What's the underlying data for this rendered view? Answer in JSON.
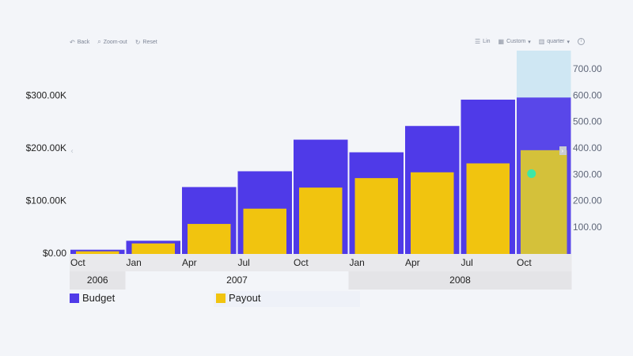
{
  "toolbar": {
    "back_label": "Back",
    "zoom_out_label": "Zoom-out",
    "reset_label": "Reset",
    "chart_type_label": "Lin",
    "custom_label": "Custom",
    "period_label": "quarter"
  },
  "chart_data": {
    "type": "bar",
    "x_ticks": [
      "Oct",
      "Jan",
      "Apr",
      "Jul",
      "Oct",
      "Jan",
      "Apr",
      "Jul",
      "Oct"
    ],
    "year_groups": [
      {
        "label": "2006",
        "span": 1
      },
      {
        "label": "2007",
        "span": 4
      },
      {
        "label": "2008",
        "span": 4
      }
    ],
    "series": [
      {
        "name": "Budget",
        "color": "#4f3ae8",
        "axis": "left",
        "values": [
          8000,
          25000,
          127000,
          157000,
          217000,
          193000,
          243000,
          293000,
          297000
        ]
      },
      {
        "name": "Payout",
        "color": "#f1c40f",
        "axis": "left",
        "values": [
          5000,
          20000,
          57000,
          86000,
          126000,
          144000,
          155000,
          172000,
          197000
        ]
      }
    ],
    "y_left": {
      "min": 0,
      "max": 350000,
      "ticks": [
        "$0.00",
        "$100.00K",
        "$200.00K",
        "$300.00K"
      ],
      "tick_values": [
        0,
        100000,
        200000,
        300000
      ]
    },
    "y_right": {
      "min": 0,
      "max": 700,
      "ticks": [
        "100.00",
        "200.00",
        "300.00",
        "400.00",
        "500.00",
        "600.00",
        "700.00"
      ],
      "tick_values": [
        100,
        200,
        300,
        400,
        500,
        600,
        700
      ]
    },
    "highlighted_index": 8,
    "marker": {
      "series": "Payout",
      "right_value": 305
    },
    "legend_position": "bottom-left",
    "grid": false
  }
}
